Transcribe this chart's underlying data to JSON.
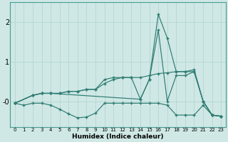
{
  "title": "",
  "xlabel": "Humidex (Indice chaleur)",
  "xlim": [
    -0.5,
    23.5
  ],
  "ylim": [
    -0.65,
    2.5
  ],
  "yticks": [
    0,
    1,
    2
  ],
  "ytick_labels": [
    "-0",
    "1",
    "2"
  ],
  "xticks": [
    0,
    1,
    2,
    3,
    4,
    5,
    6,
    7,
    8,
    9,
    10,
    11,
    12,
    13,
    14,
    15,
    16,
    17,
    18,
    19,
    20,
    21,
    22,
    23
  ],
  "bg_color": "#cfe8e5",
  "line_color": "#2e7b72",
  "grid_color": "#b8d8d5",
  "curves": [
    {
      "x": [
        0,
        1,
        2,
        3,
        4,
        5,
        6,
        7,
        8,
        9,
        10,
        11,
        12,
        13,
        14,
        15,
        16,
        17,
        18,
        19,
        20,
        21,
        22,
        23
      ],
      "y": [
        -0.05,
        -0.1,
        -0.05,
        -0.05,
        -0.1,
        -0.2,
        -0.32,
        -0.42,
        -0.4,
        -0.3,
        -0.05,
        -0.05,
        -0.05,
        -0.05,
        -0.05,
        -0.05,
        -0.05,
        -0.1,
        -0.35,
        -0.35,
        -0.35,
        -0.1,
        -0.35,
        -0.38
      ]
    },
    {
      "x": [
        0,
        2,
        3,
        4,
        5,
        6,
        7,
        8,
        9,
        10,
        11,
        12,
        13,
        14,
        15,
        16,
        17,
        18,
        19,
        20,
        21,
        22,
        23
      ],
      "y": [
        -0.05,
        0.15,
        0.2,
        0.2,
        0.2,
        0.25,
        0.25,
        0.3,
        0.3,
        0.45,
        0.55,
        0.6,
        0.6,
        0.6,
        0.65,
        0.7,
        0.72,
        0.75,
        0.75,
        0.75,
        0.0,
        -0.35,
        -0.38
      ]
    },
    {
      "x": [
        0,
        2,
        3,
        4,
        5,
        6,
        7,
        8,
        9,
        10,
        11,
        12,
        13,
        14,
        15,
        16,
        17,
        18,
        19,
        20,
        21,
        22,
        23
      ],
      "y": [
        -0.05,
        0.15,
        0.2,
        0.2,
        0.2,
        0.25,
        0.25,
        0.3,
        0.3,
        0.55,
        0.6,
        0.6,
        0.6,
        0.05,
        0.55,
        1.8,
        0.0,
        0.65,
        0.65,
        0.75,
        0.0,
        -0.35,
        -0.38
      ]
    },
    {
      "x": [
        0,
        2,
        3,
        4,
        14,
        15,
        16,
        17,
        18,
        19,
        20,
        21,
        22,
        23
      ],
      "y": [
        -0.05,
        0.15,
        0.2,
        0.2,
        0.05,
        0.55,
        2.2,
        1.6,
        0.75,
        0.75,
        0.8,
        0.0,
        -0.35,
        -0.38
      ]
    }
  ],
  "figsize": [
    3.2,
    2.0
  ],
  "dpi": 100
}
